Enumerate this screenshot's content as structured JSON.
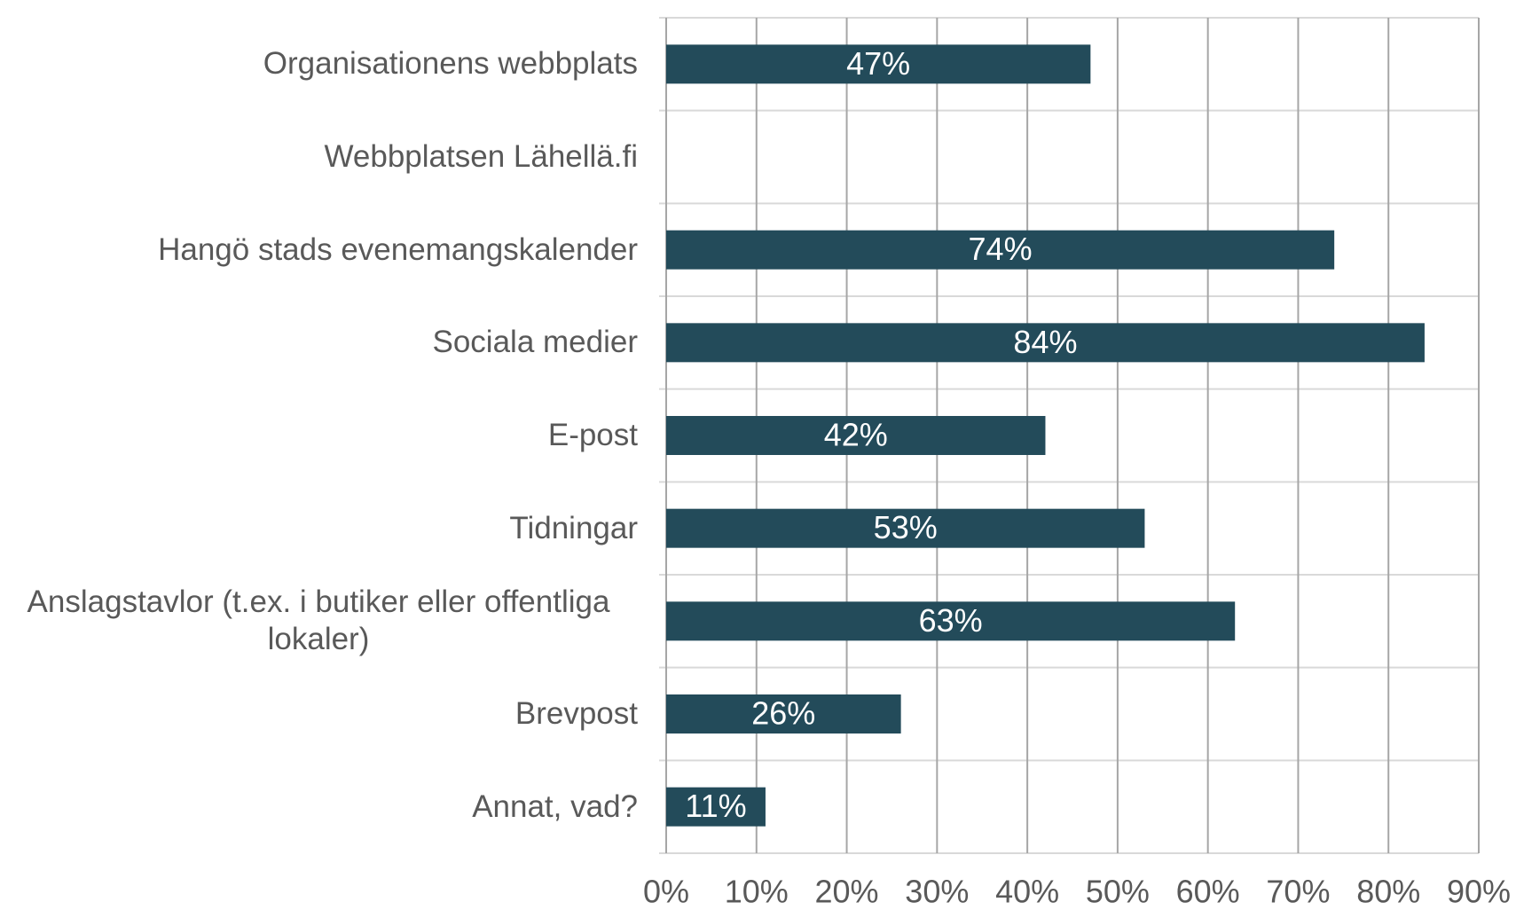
{
  "chart_data": {
    "type": "barh",
    "categories": [
      "Organisationens webbplats",
      "Webbplatsen Lähellä.fi",
      "Hangö stads evenemangskalender",
      "Sociala medier",
      "E-post",
      "Tidningar",
      "Anslagstavlor (t.ex. i butiker eller offentliga lokaler)",
      "Brevpost",
      "Annat, vad?"
    ],
    "values": [
      47,
      null,
      74,
      84,
      42,
      53,
      63,
      26,
      11
    ],
    "value_labels": [
      "47%",
      null,
      "74%",
      "84%",
      "42%",
      "53%",
      "63%",
      "26%",
      "11%"
    ],
    "color": "#234b5a",
    "xlim": [
      0,
      90
    ],
    "xticks": [
      {
        "value": 0,
        "label": "0%"
      },
      {
        "value": 10,
        "label": "10%"
      },
      {
        "value": 20,
        "label": "20%"
      },
      {
        "value": 30,
        "label": "30%"
      },
      {
        "value": 40,
        "label": "40%"
      },
      {
        "value": 50,
        "label": "50%"
      },
      {
        "value": 60,
        "label": "60%"
      },
      {
        "value": 70,
        "label": "70%"
      },
      {
        "value": 80,
        "label": "80%"
      },
      {
        "value": 90,
        "label": "90%"
      }
    ],
    "grid": true
  }
}
